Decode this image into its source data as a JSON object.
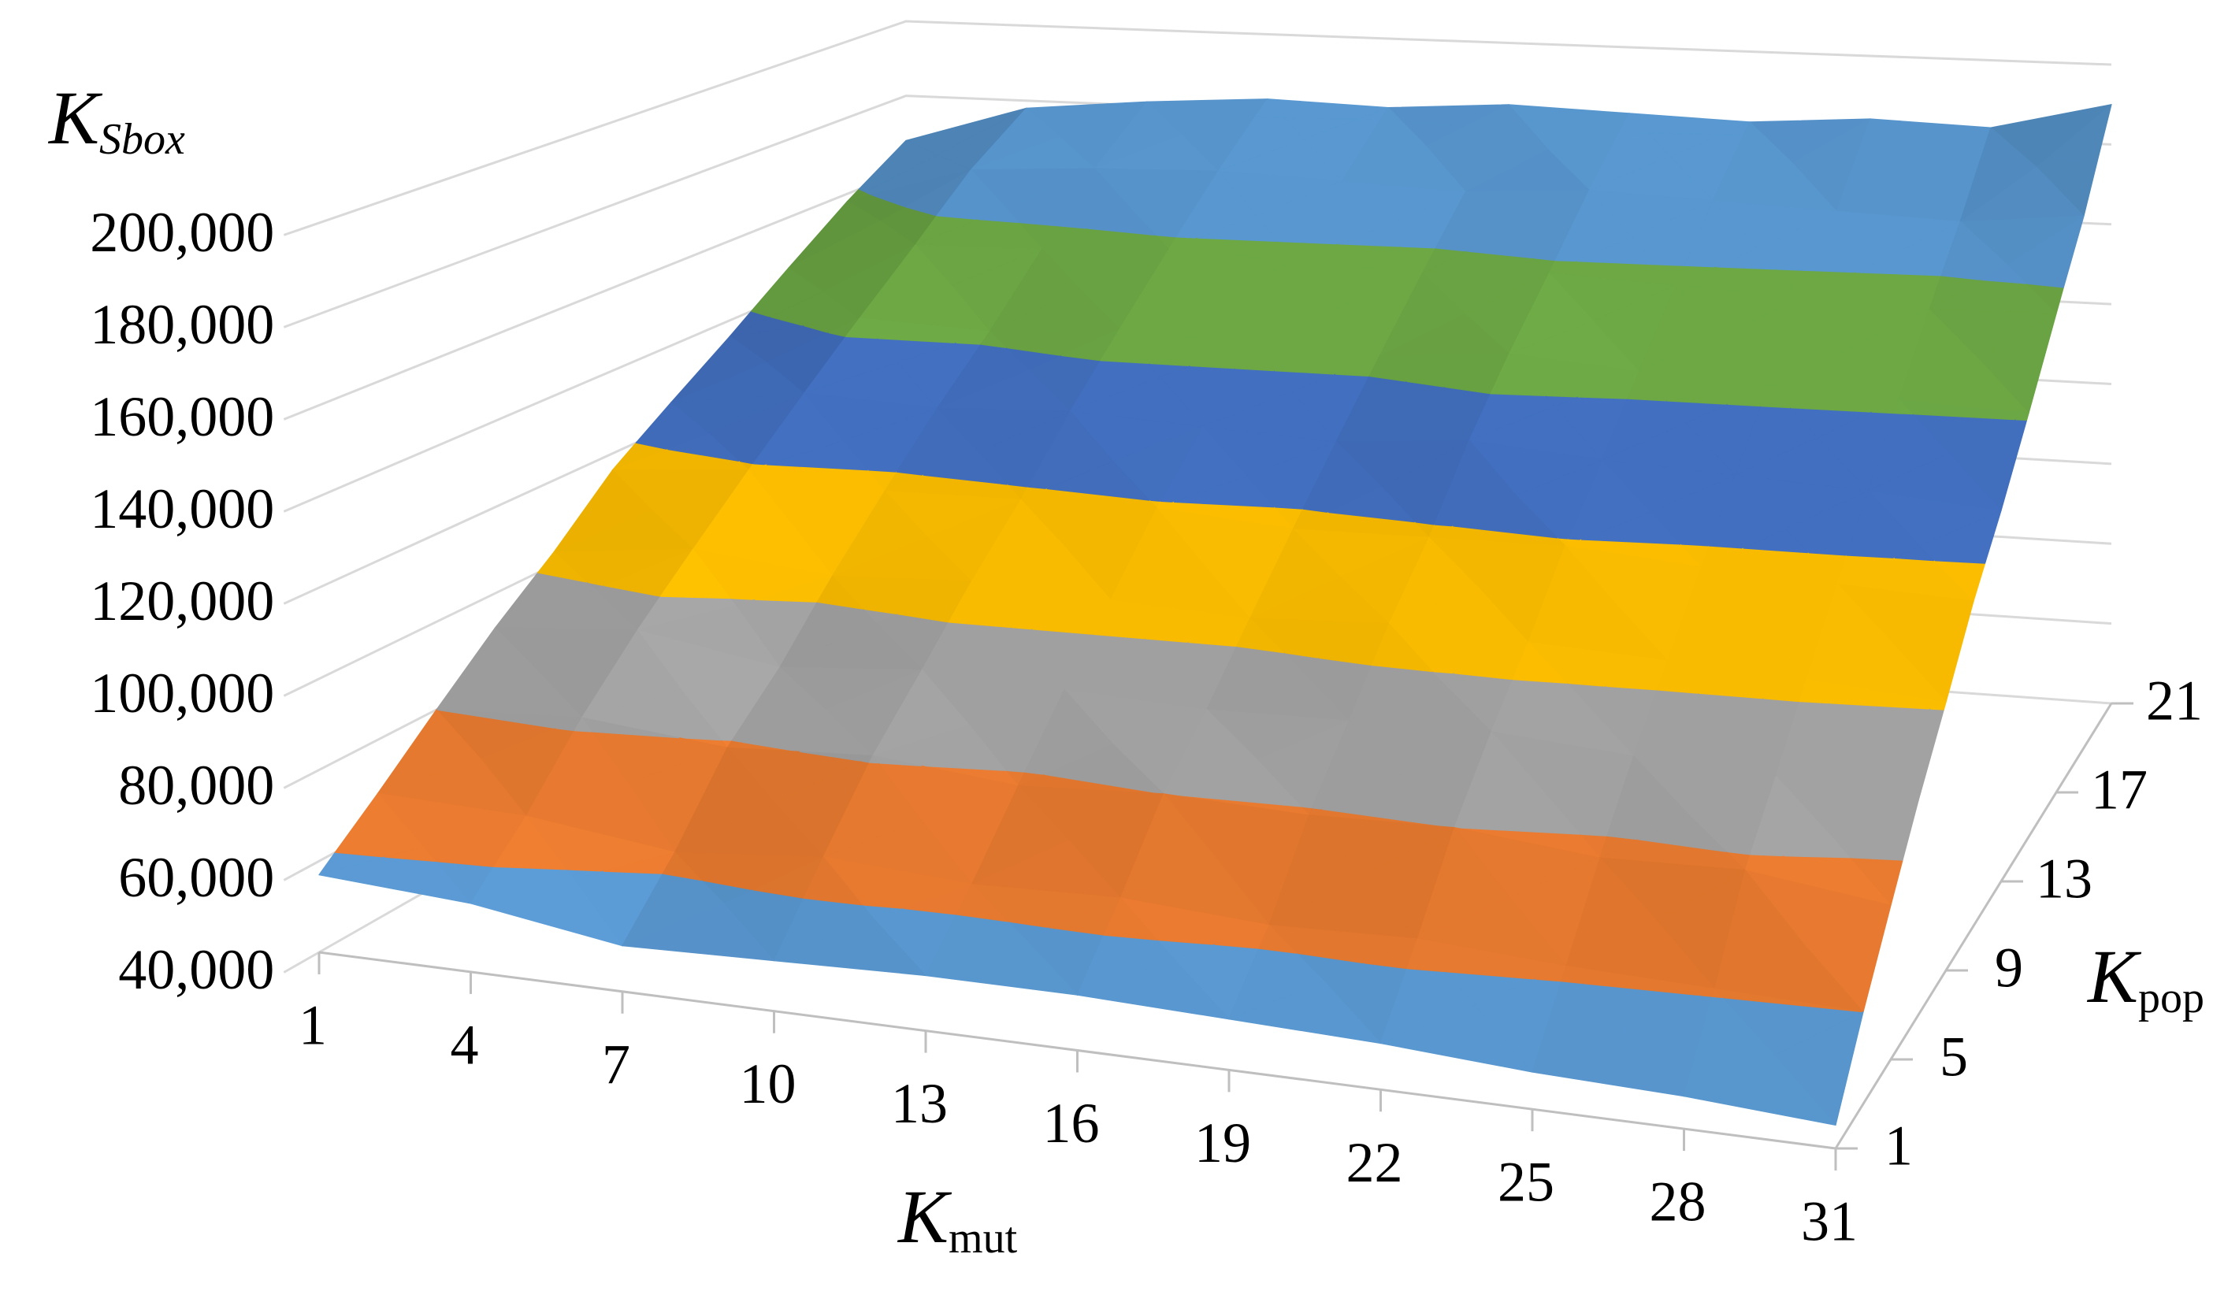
{
  "chart_data": {
    "type": "surface",
    "x_title": {
      "main": "K",
      "sub": "mut"
    },
    "y_title": {
      "main": "K",
      "sub": "pop"
    },
    "z_title": {
      "main": "K",
      "sub": "Sbox"
    },
    "x": [
      1,
      4,
      7,
      10,
      13,
      16,
      19,
      22,
      25,
      28,
      31
    ],
    "y": [
      1,
      3,
      5,
      7,
      9,
      11,
      13,
      15,
      17,
      19,
      21
    ],
    "xlim": [
      1,
      31
    ],
    "ylim": [
      1,
      21
    ],
    "xticks": [
      1,
      4,
      7,
      10,
      13,
      16,
      19,
      22,
      25,
      28,
      31
    ],
    "yticks": [
      1,
      5,
      9,
      13,
      17,
      21
    ],
    "zlim": [
      40000,
      200000
    ],
    "zticks": [
      {
        "value": 40000,
        "label": "40,000"
      },
      {
        "value": 60000,
        "label": "60,000"
      },
      {
        "value": 80000,
        "label": "80,000"
      },
      {
        "value": 100000,
        "label": "100,000"
      },
      {
        "value": 120000,
        "label": "120,000"
      },
      {
        "value": 140000,
        "label": "140,000"
      },
      {
        "value": 160000,
        "label": "160,000"
      },
      {
        "value": 180000,
        "label": "180,000"
      },
      {
        "value": 200000,
        "label": "200,000"
      }
    ],
    "band_colors": [
      "#5b9bd5",
      "#ed7d31",
      "#a5a5a5",
      "#ffc000",
      "#4472c4",
      "#70ad47",
      "#5b9bd5",
      "#5b9bd5"
    ],
    "grid": true,
    "z": [
      [
        57000,
        55000,
        50000,
        51000,
        52000,
        52000,
        51000,
        50000,
        48000,
        47000,
        45000
      ],
      [
        68000,
        67000,
        63000,
        66000,
        64000,
        65000,
        63000,
        64000,
        62000,
        61000,
        60000
      ],
      [
        80000,
        82000,
        79000,
        81000,
        78000,
        80000,
        79000,
        80000,
        77000,
        78000,
        74000
      ],
      [
        92000,
        95000,
        90000,
        93000,
        92000,
        91000,
        92000,
        93000,
        91000,
        90000,
        88000
      ],
      [
        103000,
        107000,
        104000,
        106000,
        105000,
        104000,
        106000,
        105000,
        104000,
        103000,
        101000
      ],
      [
        116000,
        119000,
        117000,
        118000,
        119000,
        117000,
        118000,
        119000,
        117000,
        116000,
        115000
      ],
      [
        126000,
        131000,
        130000,
        132000,
        131000,
        130000,
        133000,
        131000,
        130000,
        129000,
        127000
      ],
      [
        136000,
        143000,
        142000,
        145000,
        144000,
        143000,
        146000,
        144000,
        143000,
        142000,
        141000
      ],
      [
        147000,
        155000,
        156000,
        158000,
        157000,
        156000,
        158000,
        157000,
        156000,
        155000,
        156000
      ],
      [
        158000,
        168000,
        170000,
        171000,
        170000,
        169000,
        171000,
        170000,
        169000,
        168000,
        171000
      ],
      [
        168000,
        178000,
        181000,
        183000,
        182000,
        184000,
        183000,
        182000,
        184000,
        183000,
        190000
      ]
    ]
  }
}
